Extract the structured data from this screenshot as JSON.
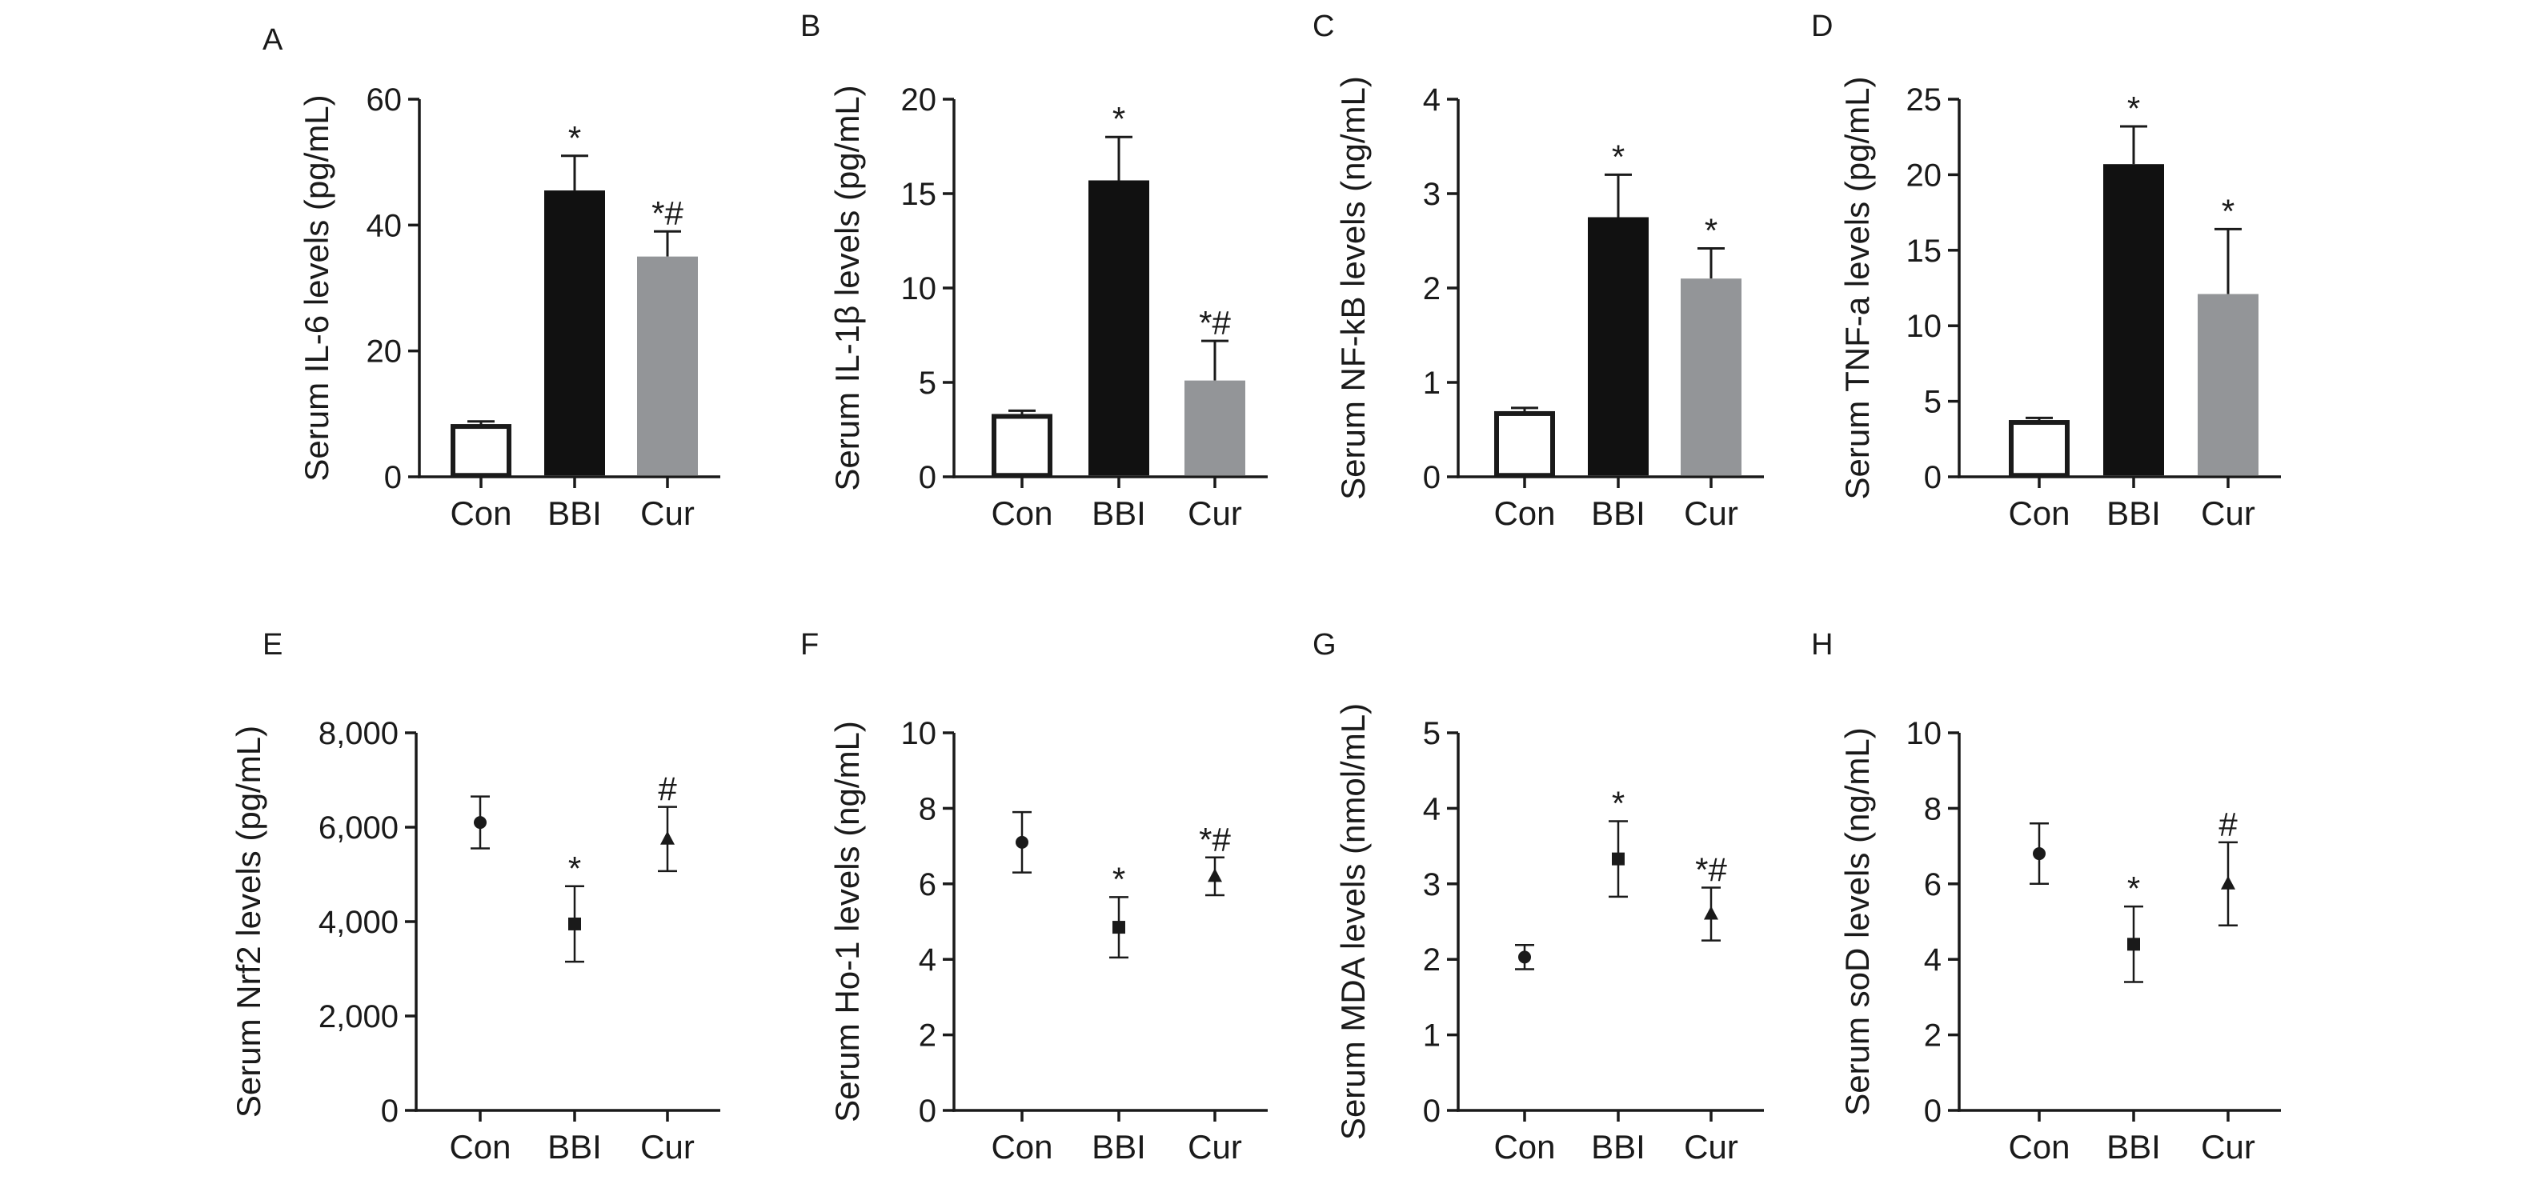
{
  "figure": {
    "panels": [
      {
        "letter": "A"
      },
      {
        "letter": "B"
      },
      {
        "letter": "C"
      },
      {
        "letter": "D"
      },
      {
        "letter": "E"
      },
      {
        "letter": "F"
      },
      {
        "letter": "G"
      },
      {
        "letter": "H"
      }
    ]
  },
  "colors": {
    "axis": "#1a1a1a",
    "bar_con": "#ffffff",
    "bar_bbi": "#111111",
    "bar_cur": "#939598",
    "marker": "#1a1a1a"
  },
  "chart_data": [
    {
      "panel": "A",
      "type": "bar",
      "categories": [
        "Con",
        "BBI",
        "Cur"
      ],
      "values": [
        8,
        45.5,
        35
      ],
      "errors": [
        0.8,
        5.5,
        4
      ],
      "annotations": [
        "",
        "*",
        "*#"
      ],
      "ylabel": "Serum IL-6 levels (pg/mL)",
      "ylim": [
        0,
        60
      ],
      "yticks": [
        0,
        20,
        40,
        60
      ],
      "ytick_labels": [
        "0",
        "20",
        "40",
        "60"
      ],
      "grid": false
    },
    {
      "panel": "B",
      "type": "bar",
      "categories": [
        "Con",
        "BBI",
        "Cur"
      ],
      "values": [
        3.2,
        15.7,
        5.1
      ],
      "errors": [
        0.3,
        2.3,
        2.1
      ],
      "annotations": [
        "",
        "*",
        "*#"
      ],
      "ylabel": "Serum IL-1β levels (pg/mL)",
      "ylim": [
        0,
        20
      ],
      "yticks": [
        0,
        5,
        10,
        15,
        20
      ],
      "ytick_labels": [
        "0",
        "5",
        "10",
        "15",
        "20"
      ],
      "grid": false
    },
    {
      "panel": "C",
      "type": "bar",
      "categories": [
        "Con",
        "BBI",
        "Cur"
      ],
      "values": [
        0.67,
        2.75,
        2.1
      ],
      "errors": [
        0.06,
        0.45,
        0.32
      ],
      "annotations": [
        "",
        "*",
        "*"
      ],
      "ylabel": "Serum NF-kB levels (ng/mL)",
      "ylim": [
        0,
        4
      ],
      "yticks": [
        0,
        1,
        2,
        3,
        4
      ],
      "ytick_labels": [
        "0",
        "1",
        "2",
        "3",
        "4"
      ],
      "grid": false
    },
    {
      "panel": "D",
      "type": "bar",
      "categories": [
        "Con",
        "BBI",
        "Cur"
      ],
      "values": [
        3.6,
        20.7,
        12.1
      ],
      "errors": [
        0.3,
        2.5,
        4.3
      ],
      "annotations": [
        "",
        "*",
        "*"
      ],
      "ylabel": "Serum TNF-a levels (pg/mL)",
      "ylim": [
        0,
        25
      ],
      "yticks": [
        0,
        5,
        10,
        15,
        20,
        25
      ],
      "ytick_labels": [
        "0",
        "5",
        "10",
        "15",
        "20",
        "25"
      ],
      "grid": false
    },
    {
      "panel": "E",
      "type": "scatter",
      "categories": [
        "Con",
        "BBI",
        "Cur"
      ],
      "values": [
        6100,
        3950,
        5750
      ],
      "errors": [
        550,
        800,
        680
      ],
      "markers": [
        "circle",
        "square",
        "triangle"
      ],
      "annotations": [
        "",
        "*",
        "#"
      ],
      "ylabel": "Serum Nrf2 levels (pg/mL)",
      "ylim": [
        0,
        8000
      ],
      "yticks": [
        0,
        2000,
        4000,
        6000,
        8000
      ],
      "ytick_labels": [
        "0",
        "2,000",
        "4,000",
        "6,000",
        "8,000"
      ],
      "grid": false
    },
    {
      "panel": "F",
      "type": "scatter",
      "categories": [
        "Con",
        "BBI",
        "Cur"
      ],
      "values": [
        7.1,
        4.85,
        6.2
      ],
      "errors": [
        0.8,
        0.8,
        0.5
      ],
      "markers": [
        "circle",
        "square",
        "triangle"
      ],
      "annotations": [
        "",
        "*",
        "*#"
      ],
      "ylabel": "Serum Ho-1 levels (ng/mL)",
      "ylim": [
        0,
        10
      ],
      "yticks": [
        0,
        2,
        4,
        6,
        8,
        10
      ],
      "ytick_labels": [
        "0",
        "2",
        "4",
        "6",
        "8",
        "10"
      ],
      "grid": false
    },
    {
      "panel": "G",
      "type": "scatter",
      "categories": [
        "Con",
        "BBI",
        "Cur"
      ],
      "values": [
        2.03,
        3.33,
        2.6
      ],
      "errors": [
        0.16,
        0.5,
        0.35
      ],
      "markers": [
        "circle",
        "square",
        "triangle"
      ],
      "annotations": [
        "",
        "*",
        "*#"
      ],
      "ylabel": "Serum MDA levels (nmol/mL)",
      "ylim": [
        0,
        5
      ],
      "yticks": [
        0,
        1,
        2,
        3,
        4,
        5
      ],
      "ytick_labels": [
        "0",
        "1",
        "2",
        "3",
        "4",
        "5"
      ],
      "grid": false
    },
    {
      "panel": "H",
      "type": "scatter",
      "categories": [
        "Con",
        "BBI",
        "Cur"
      ],
      "values": [
        6.8,
        4.4,
        6.0
      ],
      "errors": [
        0.8,
        1.0,
        1.1
      ],
      "markers": [
        "circle",
        "square",
        "triangle"
      ],
      "annotations": [
        "",
        "*",
        "#"
      ],
      "ylabel": "Serum soD levels (ng/mL)",
      "ylim": [
        0,
        10
      ],
      "yticks": [
        0,
        2,
        4,
        6,
        8,
        10
      ],
      "ytick_labels": [
        "0",
        "2",
        "4",
        "6",
        "8",
        "10"
      ],
      "grid": false
    }
  ]
}
